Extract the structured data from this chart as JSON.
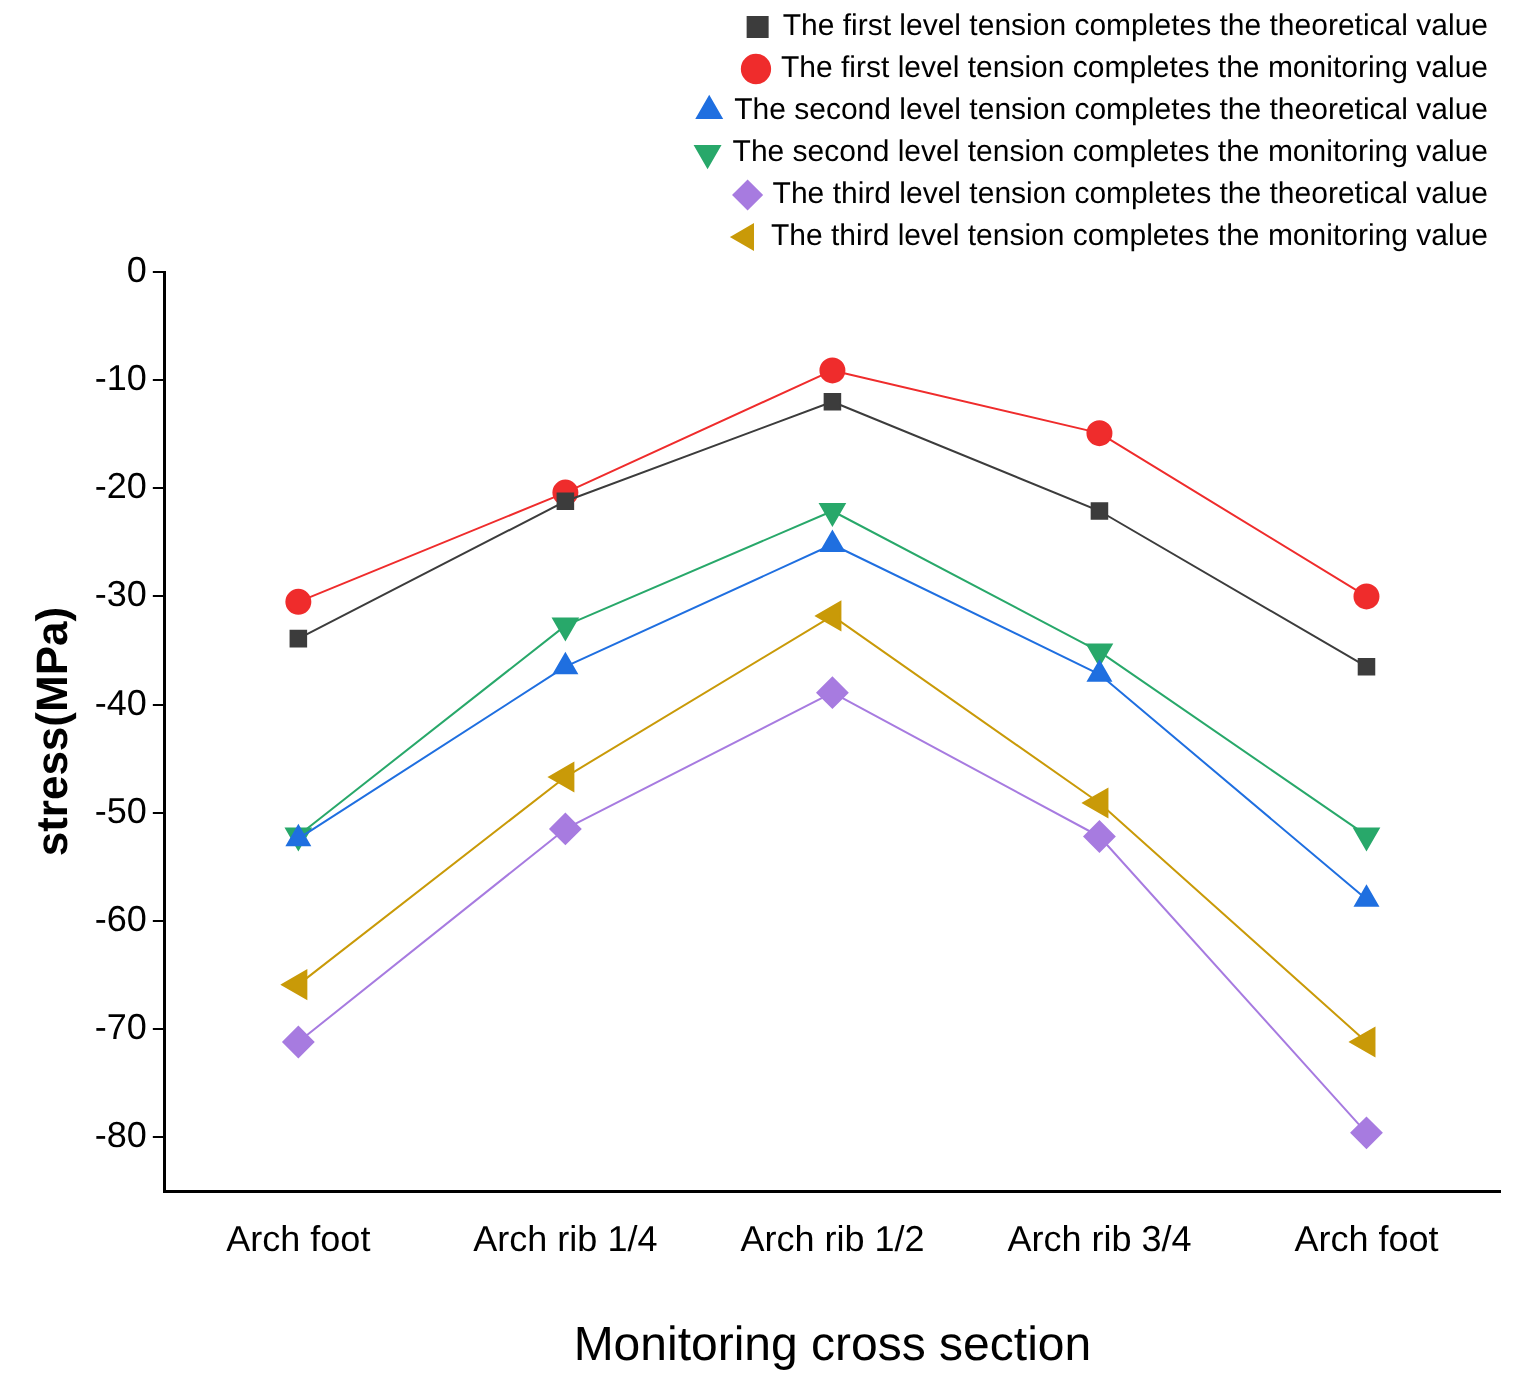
{
  "chart_data": {
    "type": "line",
    "xlabel": "Monitoring cross section",
    "ylabel": "stress(MPa)",
    "categories": [
      "Arch foot",
      "Arch rib 1/4",
      "Arch rib 1/2",
      "Arch rib 3/4",
      "Arch foot"
    ],
    "ylim": [
      -85,
      0
    ],
    "yticks": [
      0,
      -10,
      -20,
      -30,
      -40,
      -50,
      -60,
      -70,
      -80
    ],
    "grid": false,
    "legend": "top right",
    "line_style": "solid",
    "series": [
      {
        "name": "The first level tension completes the theoretical value",
        "color": "#3c3c3c",
        "marker": "square",
        "values": [
          -33.9,
          -21.2,
          -12.0,
          -22.1,
          -36.5
        ]
      },
      {
        "name": "The first level tension completes the monitoring value",
        "color": "#ef2c2c",
        "marker": "circle",
        "values": [
          -30.5,
          -20.4,
          -9.1,
          -14.9,
          -30.0
        ]
      },
      {
        "name": "The second level tension completes the theoretical value",
        "color": "#1f6fe0",
        "marker": "triangle",
        "values": [
          -52.4,
          -36.5,
          -25.2,
          -37.2,
          -58.0
        ]
      },
      {
        "name": "The second level tension completes the monitoring value",
        "color": "#28a86a",
        "marker": "triangle-down",
        "values": [
          -52.1,
          -32.7,
          -22.1,
          -35.1,
          -52.1
        ]
      },
      {
        "name": "The third level tension completes the theoretical value",
        "color": "#a77be0",
        "marker": "diamond",
        "values": [
          -71.2,
          -51.5,
          -38.9,
          -52.2,
          -79.6
        ]
      },
      {
        "name": "The third level tension completes the monitoring value",
        "color": "#c99a08",
        "marker": "triangle-left",
        "values": [
          -65.9,
          -46.7,
          -31.8,
          -49.1,
          -71.2
        ]
      }
    ]
  }
}
